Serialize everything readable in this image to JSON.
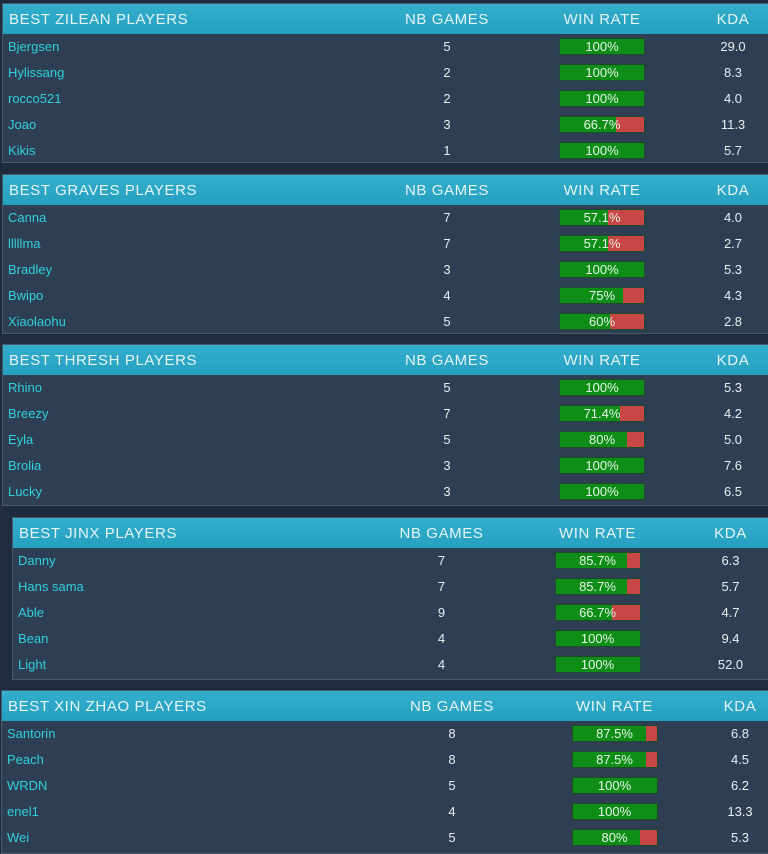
{
  "colors": {
    "header": "#2aa6c4",
    "win": "#0e8e16",
    "loss": "#c84646",
    "player": "#2fd0dc"
  },
  "columns": {
    "games": "NB GAMES",
    "win_rate": "WIN RATE",
    "kda": "KDA"
  },
  "panels": [
    {
      "title": "BEST ZILEAN PLAYERS",
      "rows": [
        {
          "player": "Bjergsen",
          "games": "5",
          "win_rate": "100%",
          "win_pct": 100,
          "kda": "29.0"
        },
        {
          "player": "Hylissang",
          "games": "2",
          "win_rate": "100%",
          "win_pct": 100,
          "kda": "8.3"
        },
        {
          "player": "rocco521",
          "games": "2",
          "win_rate": "100%",
          "win_pct": 100,
          "kda": "4.0"
        },
        {
          "player": "Joao",
          "games": "3",
          "win_rate": "66.7%",
          "win_pct": 66.7,
          "kda": "11.3"
        },
        {
          "player": "Kikis",
          "games": "1",
          "win_rate": "100%",
          "win_pct": 100,
          "kda": "5.7"
        }
      ]
    },
    {
      "title": "BEST GRAVES PLAYERS",
      "rows": [
        {
          "player": "Canna",
          "games": "7",
          "win_rate": "57.1%",
          "win_pct": 57.1,
          "kda": "4.0"
        },
        {
          "player": "lllllma",
          "games": "7",
          "win_rate": "57.1%",
          "win_pct": 57.1,
          "kda": "2.7"
        },
        {
          "player": "Bradley",
          "games": "3",
          "win_rate": "100%",
          "win_pct": 100,
          "kda": "5.3"
        },
        {
          "player": "Bwipo",
          "games": "4",
          "win_rate": "75%",
          "win_pct": 75,
          "kda": "4.3"
        },
        {
          "player": "Xiaolaohu",
          "games": "5",
          "win_rate": "60%",
          "win_pct": 60,
          "kda": "2.8"
        }
      ]
    },
    {
      "title": "BEST THRESH PLAYERS",
      "rows": [
        {
          "player": "Rhino",
          "games": "5",
          "win_rate": "100%",
          "win_pct": 100,
          "kda": "5.3"
        },
        {
          "player": "Breezy",
          "games": "7",
          "win_rate": "71.4%",
          "win_pct": 71.4,
          "kda": "4.2"
        },
        {
          "player": "Eyla",
          "games": "5",
          "win_rate": "80%",
          "win_pct": 80,
          "kda": "5.0"
        },
        {
          "player": "Brolia",
          "games": "3",
          "win_rate": "100%",
          "win_pct": 100,
          "kda": "7.6"
        },
        {
          "player": "Lucky",
          "games": "3",
          "win_rate": "100%",
          "win_pct": 100,
          "kda": "6.5"
        }
      ]
    },
    {
      "title": "BEST JINX PLAYERS",
      "rows": [
        {
          "player": "Danny",
          "games": "7",
          "win_rate": "85.7%",
          "win_pct": 85.7,
          "kda": "6.3"
        },
        {
          "player": "Hans sama",
          "games": "7",
          "win_rate": "85.7%",
          "win_pct": 85.7,
          "kda": "5.7"
        },
        {
          "player": "Able",
          "games": "9",
          "win_rate": "66.7%",
          "win_pct": 66.7,
          "kda": "4.7"
        },
        {
          "player": "Bean",
          "games": "4",
          "win_rate": "100%",
          "win_pct": 100,
          "kda": "9.4"
        },
        {
          "player": "Light",
          "games": "4",
          "win_rate": "100%",
          "win_pct": 100,
          "kda": "52.0"
        }
      ]
    },
    {
      "title": "BEST XIN ZHAO PLAYERS",
      "rows": [
        {
          "player": "Santorin",
          "games": "8",
          "win_rate": "87.5%",
          "win_pct": 87.5,
          "kda": "6.8"
        },
        {
          "player": "Peach",
          "games": "8",
          "win_rate": "87.5%",
          "win_pct": 87.5,
          "kda": "4.5"
        },
        {
          "player": "WRDN",
          "games": "5",
          "win_rate": "100%",
          "win_pct": 100,
          "kda": "6.2"
        },
        {
          "player": "enel1",
          "games": "4",
          "win_rate": "100%",
          "win_pct": 100,
          "kda": "13.3"
        },
        {
          "player": "Wei",
          "games": "5",
          "win_rate": "80%",
          "win_pct": 80,
          "kda": "5.3"
        }
      ]
    }
  ]
}
